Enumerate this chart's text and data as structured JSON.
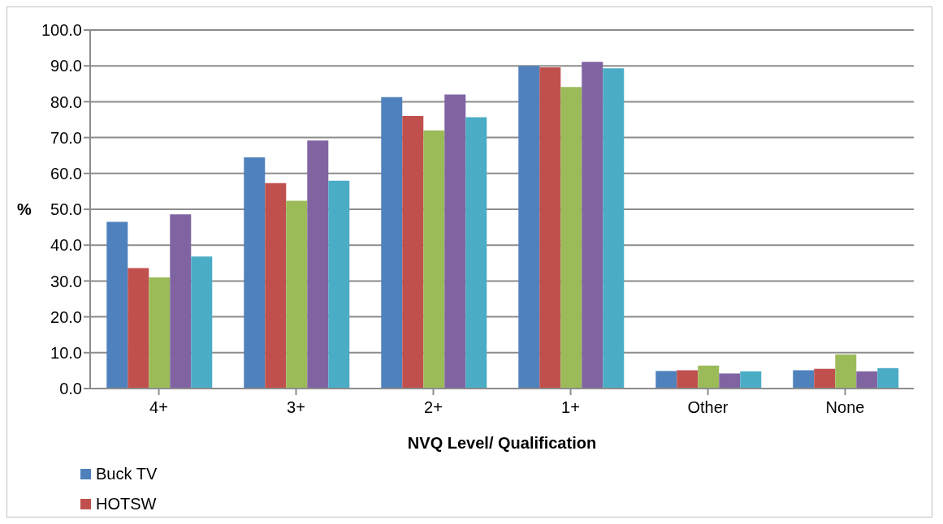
{
  "chart_data": {
    "type": "bar",
    "xlabel": "NVQ Level/ Qualification",
    "ylabel": "%",
    "categories": [
      "4+",
      "3+",
      "2+",
      "1+",
      "Other",
      "None"
    ],
    "series": [
      {
        "name": "Buck TV",
        "color": "#4f81bd",
        "values": [
          46.5,
          64.5,
          81.3,
          90.0,
          4.9,
          5.1
        ]
      },
      {
        "name": "HOTSW",
        "color": "#c0504d",
        "values": [
          33.6,
          57.3,
          76.0,
          89.6,
          5.1,
          5.5
        ]
      },
      {
        "color": "#9bbb59",
        "values": [
          31.0,
          52.4,
          72.0,
          84.1,
          6.4,
          9.5
        ]
      },
      {
        "color": "#8064a2",
        "values": [
          48.6,
          69.2,
          82.0,
          91.1,
          4.2,
          4.8
        ]
      },
      {
        "color": "#4bacc6",
        "values": [
          36.8,
          58.0,
          75.7,
          89.3,
          4.8,
          5.7
        ]
      }
    ],
    "ylim": [
      0,
      100
    ],
    "yticks": [
      {
        "value": 0,
        "label": "0.0"
      },
      {
        "value": 10,
        "label": "10.0"
      },
      {
        "value": 20,
        "label": "20.0"
      },
      {
        "value": 30,
        "label": "30.0"
      },
      {
        "value": 40,
        "label": "40.0"
      },
      {
        "value": 50,
        "label": "50.0"
      },
      {
        "value": 60,
        "label": "60.0"
      },
      {
        "value": 70,
        "label": "70.0"
      },
      {
        "value": 80,
        "label": "80.0"
      },
      {
        "value": 90,
        "label": "90.0"
      },
      {
        "value": 100,
        "label": "100.0"
      }
    ],
    "grid": "y",
    "legend": "bottom left"
  }
}
